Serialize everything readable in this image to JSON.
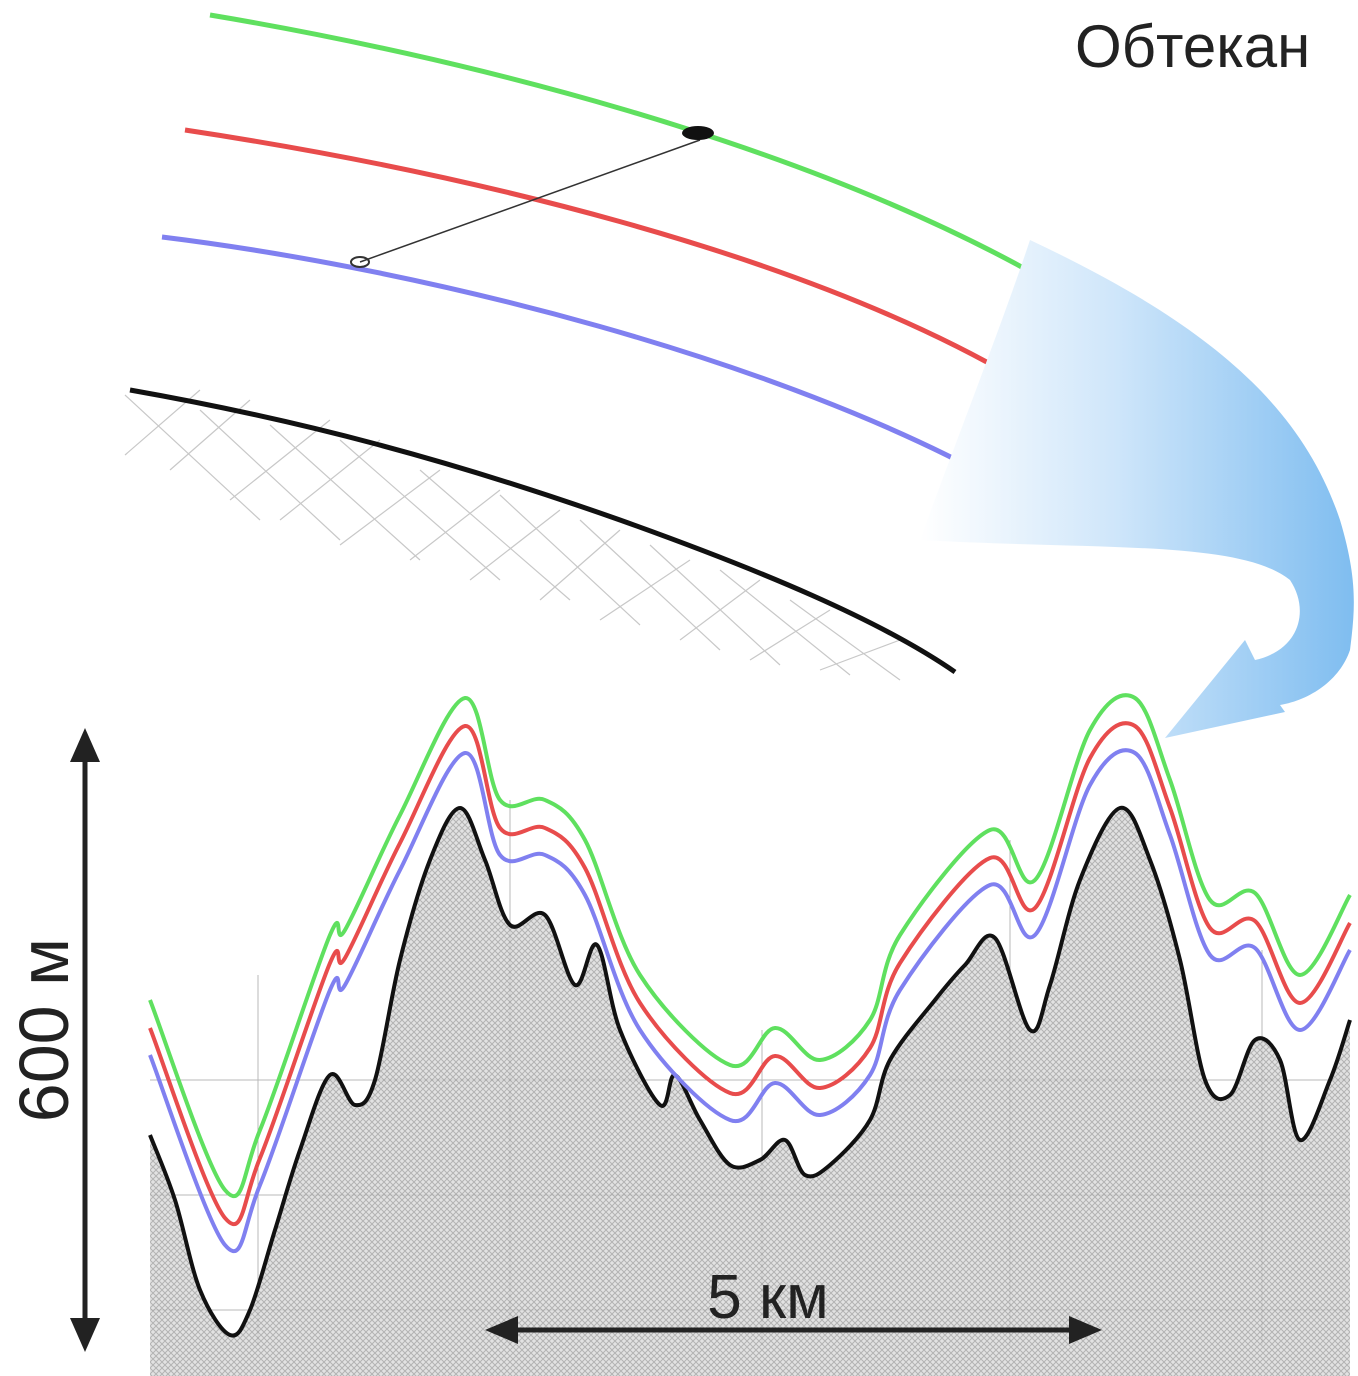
{
  "title": "Обтекан",
  "vertical_scale_label": "600 м",
  "horizontal_scale_label": "5 км"
}
